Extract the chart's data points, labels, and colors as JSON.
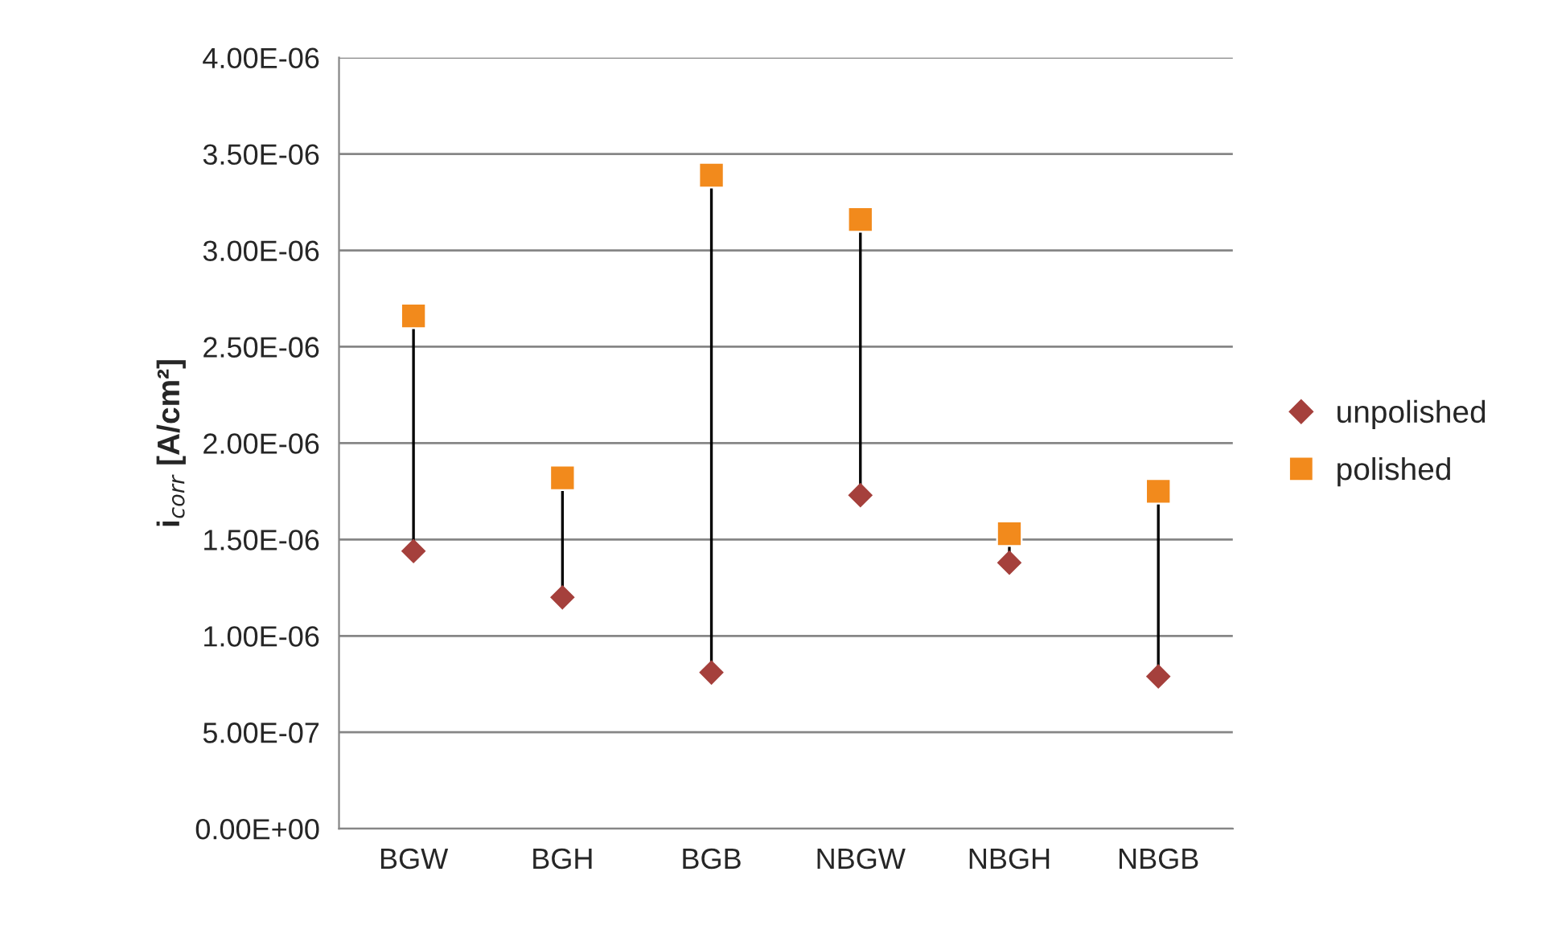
{
  "chart_data": {
    "type": "scatter",
    "ylabel": "i$_{corr}$ [A/cm²]",
    "categories": [
      "BGW",
      "BGH",
      "BGB",
      "NBGW",
      "NBGH",
      "NBGB"
    ],
    "series": [
      {
        "name": "unpolished",
        "color": "#a5403c",
        "marker": "diamond",
        "values": [
          1.44e-06,
          1.2e-06,
          8.1e-07,
          1.73e-06,
          1.38e-06,
          7.9e-07
        ]
      },
      {
        "name": "polished",
        "color": "#f28a1c",
        "marker": "square",
        "values": [
          2.66e-06,
          1.82e-06,
          3.39e-06,
          3.16e-06,
          1.53e-06,
          1.75e-06
        ]
      }
    ],
    "ylim": [
      0,
      4e-06
    ],
    "yticks": [
      {
        "value": 0,
        "label": "0.00E+00"
      },
      {
        "value": 5e-07,
        "label": "5.00E-07"
      },
      {
        "value": 1e-06,
        "label": "1.00E-06"
      },
      {
        "value": 1.5e-06,
        "label": "1.50E-06"
      },
      {
        "value": 2e-06,
        "label": "2.00E-06"
      },
      {
        "value": 2.5e-06,
        "label": "2.50E-06"
      },
      {
        "value": 3e-06,
        "label": "3.00E-06"
      },
      {
        "value": 3.5e-06,
        "label": "3.50E-06"
      },
      {
        "value": 4e-06,
        "label": "4.00E-06"
      }
    ],
    "grid": "y",
    "legend": "right"
  }
}
